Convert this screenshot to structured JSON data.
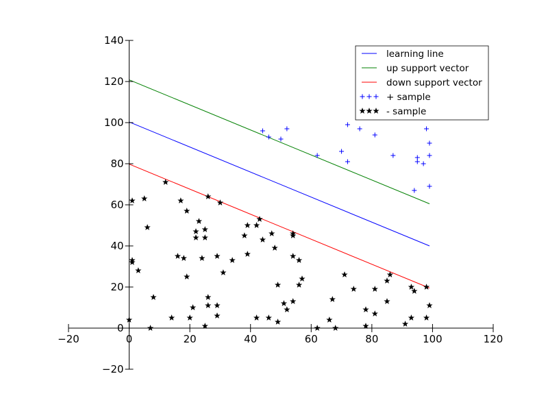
{
  "chart_data": {
    "type": "scatter",
    "xlim": [
      -20,
      120
    ],
    "ylim": [
      -20,
      140
    ],
    "x_ticks": [
      -20,
      0,
      20,
      40,
      60,
      80,
      100,
      120
    ],
    "y_ticks": [
      -20,
      0,
      20,
      40,
      60,
      80,
      100,
      120,
      140
    ],
    "x_tick_labels": [
      "−20",
      "0",
      "20",
      "40",
      "60",
      "80",
      "100",
      "120"
    ],
    "y_tick_labels": [
      "−20",
      "0",
      "20",
      "40",
      "60",
      "80",
      "100",
      "120",
      "140"
    ],
    "grid": false,
    "legend_position": "top-right",
    "lines": [
      {
        "name": "learning line",
        "color": "#0000ff",
        "x": [
          0,
          99
        ],
        "y": [
          100.3,
          40
        ]
      },
      {
        "name": "up support vector",
        "color": "#008000",
        "x": [
          0,
          99
        ],
        "y": [
          120.8,
          60.5
        ]
      },
      {
        "name": "down support vector",
        "color": "#ff0000",
        "x": [
          0,
          99
        ],
        "y": [
          79.8,
          19.5
        ]
      }
    ],
    "scatter": [
      {
        "name": "+ sample",
        "color": "#0000ff",
        "marker": "plus",
        "points": [
          [
            44,
            96
          ],
          [
            46,
            93
          ],
          [
            50,
            92
          ],
          [
            52,
            97
          ],
          [
            62,
            84
          ],
          [
            70,
            86
          ],
          [
            72,
            99
          ],
          [
            72,
            81
          ],
          [
            76,
            97
          ],
          [
            81,
            94
          ],
          [
            87,
            84
          ],
          [
            94,
            67
          ],
          [
            95,
            83
          ],
          [
            95,
            81
          ],
          [
            97,
            80
          ],
          [
            98,
            97
          ],
          [
            99,
            90
          ],
          [
            99,
            84
          ],
          [
            99,
            69
          ]
        ]
      },
      {
        "name": "- sample",
        "color": "#000000",
        "marker": "star",
        "points": [
          [
            0,
            4
          ],
          [
            1,
            62
          ],
          [
            1,
            33
          ],
          [
            1,
            32
          ],
          [
            3,
            28
          ],
          [
            5,
            63
          ],
          [
            6,
            49
          ],
          [
            7,
            0
          ],
          [
            8,
            15
          ],
          [
            12,
            71
          ],
          [
            14,
            5
          ],
          [
            16,
            35
          ],
          [
            17,
            62
          ],
          [
            18,
            34
          ],
          [
            19,
            57
          ],
          [
            19,
            25
          ],
          [
            20,
            5
          ],
          [
            21,
            10
          ],
          [
            22,
            47
          ],
          [
            22,
            44
          ],
          [
            23,
            52
          ],
          [
            24,
            34
          ],
          [
            25,
            48
          ],
          [
            25,
            44
          ],
          [
            25,
            1
          ],
          [
            26,
            64
          ],
          [
            26,
            15
          ],
          [
            26,
            11
          ],
          [
            29,
            35
          ],
          [
            29,
            11
          ],
          [
            29,
            6
          ],
          [
            30,
            61
          ],
          [
            31,
            27
          ],
          [
            34,
            33
          ],
          [
            38,
            45
          ],
          [
            39,
            50
          ],
          [
            39,
            36
          ],
          [
            42,
            50
          ],
          [
            42,
            5
          ],
          [
            43,
            53
          ],
          [
            44,
            43
          ],
          [
            46,
            5
          ],
          [
            47,
            46
          ],
          [
            48,
            39
          ],
          [
            49,
            21
          ],
          [
            49,
            3
          ],
          [
            51,
            12
          ],
          [
            52,
            9
          ],
          [
            54,
            46
          ],
          [
            54,
            45
          ],
          [
            54,
            35
          ],
          [
            54,
            13
          ],
          [
            56,
            33
          ],
          [
            56,
            21
          ],
          [
            57,
            24
          ],
          [
            62,
            0
          ],
          [
            66,
            4
          ],
          [
            67,
            14
          ],
          [
            68,
            0
          ],
          [
            71,
            26
          ],
          [
            74,
            19
          ],
          [
            78,
            9
          ],
          [
            78,
            1
          ],
          [
            81,
            19
          ],
          [
            81,
            7
          ],
          [
            85,
            23
          ],
          [
            85,
            13
          ],
          [
            86,
            26
          ],
          [
            91,
            2
          ],
          [
            93,
            20
          ],
          [
            93,
            5
          ],
          [
            94,
            18
          ],
          [
            98,
            20
          ],
          [
            98,
            5
          ],
          [
            99,
            11
          ]
        ]
      }
    ],
    "legend": [
      {
        "label": "learning line",
        "kind": "line",
        "color": "#0000ff"
      },
      {
        "label": "up support vector",
        "kind": "line",
        "color": "#008000"
      },
      {
        "label": "down support vector",
        "kind": "line",
        "color": "#ff0000"
      },
      {
        "label": "+ sample",
        "kind": "plus",
        "color": "#0000ff"
      },
      {
        "label": "- sample",
        "kind": "star",
        "color": "#000000"
      }
    ]
  }
}
